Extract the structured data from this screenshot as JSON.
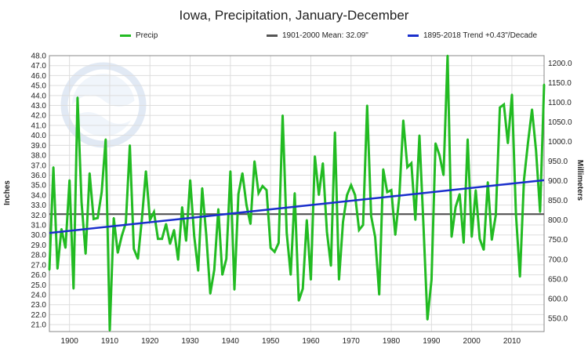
{
  "chart_data": {
    "type": "line",
    "title": "Iowa, Precipitation, January-December",
    "ylabel_left": "Inches",
    "ylabel_right": "Millimeters",
    "xlim": [
      1895,
      2018
    ],
    "ylim": [
      20.3,
      48.0
    ],
    "y_ticks_left": [
      "48.0",
      "47.0",
      "46.0",
      "45.0",
      "44.0",
      "43.0",
      "42.0",
      "41.0",
      "40.0",
      "39.0",
      "38.0",
      "37.0",
      "36.0",
      "35.0",
      "34.0",
      "33.0",
      "32.0",
      "31.0",
      "30.0",
      "29.0",
      "28.0",
      "27.0",
      "26.0",
      "25.0",
      "24.0",
      "23.0",
      "22.0",
      "21.0"
    ],
    "y_ticks_right": [
      "1200.0",
      "1150.0",
      "1100.0",
      "1050.0",
      "1000.0",
      "950.0",
      "900.0",
      "850.0",
      "800.0",
      "750.0",
      "700.0",
      "650.0",
      "600.0",
      "550.0"
    ],
    "x_ticks": [
      "1900",
      "1910",
      "1920",
      "1930",
      "1940",
      "1950",
      "1960",
      "1970",
      "1980",
      "1990",
      "2000",
      "2010"
    ],
    "grid": true,
    "colors": {
      "precip": "#22bb22",
      "mean": "#555555",
      "trend": "#1a2fcc",
      "grid": "#dddddd"
    },
    "series": [
      {
        "name": "Precip",
        "x": [
          1895,
          1896,
          1897,
          1898,
          1899,
          1900,
          1901,
          1902,
          1903,
          1904,
          1905,
          1906,
          1907,
          1908,
          1909,
          1910,
          1911,
          1912,
          1913,
          1914,
          1915,
          1916,
          1917,
          1918,
          1919,
          1920,
          1921,
          1922,
          1923,
          1924,
          1925,
          1926,
          1927,
          1928,
          1929,
          1930,
          1931,
          1932,
          1933,
          1934,
          1935,
          1936,
          1937,
          1938,
          1939,
          1940,
          1941,
          1942,
          1943,
          1944,
          1945,
          1946,
          1947,
          1948,
          1949,
          1950,
          1951,
          1952,
          1953,
          1954,
          1955,
          1956,
          1957,
          1958,
          1959,
          1960,
          1961,
          1962,
          1963,
          1964,
          1965,
          1966,
          1967,
          1968,
          1969,
          1970,
          1971,
          1972,
          1973,
          1974,
          1975,
          1976,
          1977,
          1978,
          1979,
          1980,
          1981,
          1982,
          1983,
          1984,
          1985,
          1986,
          1987,
          1988,
          1989,
          1990,
          1991,
          1992,
          1993,
          1994,
          1995,
          1996,
          1997,
          1998,
          1999,
          2000,
          2001,
          2002,
          2003,
          2004,
          2005,
          2006,
          2007,
          2008,
          2009,
          2010,
          2011,
          2012,
          2013,
          2014,
          2015,
          2016,
          2017,
          2018
        ],
        "values": [
          26.5,
          36.8,
          26.6,
          30.6,
          28.7,
          35.5,
          24.6,
          43.8,
          33.3,
          28.1,
          36.2,
          31.6,
          31.7,
          34.3,
          39.6,
          20.4,
          31.7,
          28.2,
          29.9,
          31.2,
          39.0,
          28.6,
          27.6,
          31.6,
          36.4,
          31.5,
          32.3,
          29.6,
          29.6,
          31.1,
          29.1,
          30.5,
          27.5,
          32.8,
          29.4,
          35.5,
          29.9,
          26.4,
          34.7,
          30.0,
          24.1,
          26.5,
          32.6,
          26.0,
          27.6,
          36.4,
          24.5,
          34.1,
          36.2,
          33.0,
          31.1,
          37.4,
          34.2,
          34.9,
          34.5,
          28.7,
          28.3,
          29.2,
          42.0,
          30.2,
          26.0,
          34.2,
          23.4,
          24.6,
          31.5,
          25.5,
          37.9,
          34.0,
          37.2,
          30.3,
          26.9,
          40.3,
          25.5,
          31.3,
          34.0,
          35.0,
          34.0,
          30.5,
          31.0,
          43.0,
          31.9,
          29.8,
          24.0,
          36.6,
          34.3,
          34.5,
          30.0,
          33.8,
          41.5,
          36.8,
          37.2,
          31.5,
          40.0,
          31.0,
          21.5,
          25.5,
          39.2,
          38.0,
          36.0,
          48.0,
          29.8,
          32.8,
          34.1,
          29.2,
          39.6,
          29.8,
          34.5,
          29.6,
          28.5,
          35.3,
          29.5,
          32.0,
          42.8,
          43.1,
          39.2,
          44.1,
          32.1,
          25.8,
          35.5,
          39.3,
          42.6,
          38.5,
          32.3,
          45.1
        ]
      },
      {
        "name": "1901-2000 Mean: 32.09\"",
        "values": [
          32.09,
          32.09
        ]
      },
      {
        "name": "1895-2018 Trend +0.43\"/Decade",
        "values": [
          30.2,
          35.5
        ]
      }
    ]
  }
}
